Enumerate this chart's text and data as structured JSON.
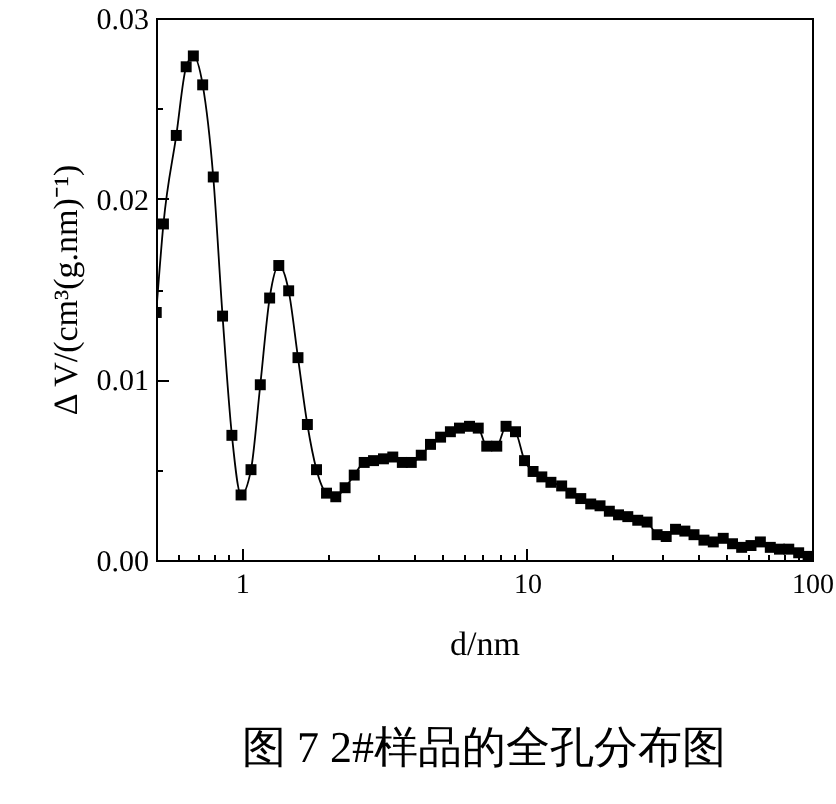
{
  "chart_data": {
    "type": "line",
    "xlabel": "d/nm",
    "ylabel": "Δ V/(cm³(g.nm)⁻¹)",
    "annotations": [
      "图 7  2#样品的全孔分布图"
    ],
    "log": "x",
    "grid": false,
    "marker": "square",
    "line_style": "solid",
    "xlim": [
      0.5,
      100
    ],
    "xticks": [
      {
        "value": 0.6,
        "label": null
      },
      {
        "value": 0.7,
        "label": null
      },
      {
        "value": 0.8,
        "label": null
      },
      {
        "value": 0.9,
        "label": null
      },
      1,
      {
        "value": 2,
        "label": null
      },
      {
        "value": 3,
        "label": null
      },
      {
        "value": 4,
        "label": null
      },
      {
        "value": 5,
        "label": null
      },
      {
        "value": 6,
        "label": null
      },
      {
        "value": 7,
        "label": null
      },
      {
        "value": 8,
        "label": null
      },
      {
        "value": 9,
        "label": null
      },
      10,
      {
        "value": 20,
        "label": null
      },
      {
        "value": 30,
        "label": null
      },
      {
        "value": 40,
        "label": null
      },
      {
        "value": 50,
        "label": null
      },
      {
        "value": 60,
        "label": null
      },
      {
        "value": 70,
        "label": null
      },
      {
        "value": 80,
        "label": null
      },
      {
        "value": 90,
        "label": null
      },
      100
    ],
    "ylim": [
      0,
      0.03
    ],
    "yticks": [
      {
        "value": 0,
        "label": "0.00"
      },
      {
        "value": 0.005,
        "label": null
      },
      0.01,
      {
        "value": 0.015,
        "label": null
      },
      0.02,
      {
        "value": 0.025,
        "label": null
      },
      0.03
    ],
    "x": [
      0.501,
      0.531,
      0.589,
      0.638,
      0.676,
      0.729,
      0.794,
      0.856,
      0.923,
      0.994,
      1.077,
      1.161,
      1.252,
      1.348,
      1.46,
      1.574,
      1.698,
      1.828,
      1.982,
      2.136,
      2.303,
      2.479,
      2.687,
      2.897,
      3.139,
      3.385,
      3.656,
      3.93,
      4.26,
      4.59,
      4.98,
      5.39,
      5.8,
      6.29,
      6.75,
      7.23,
      7.84,
      8.45,
      9.12,
      9.81,
      10.51,
      11.28,
      12.14,
      13.24,
      14.26,
      15.45,
      16.74,
      18.05,
      19.46,
      20.96,
      22.59,
      24.48,
      26.4,
      28.61,
      30.8,
      33.21,
      35.81,
      38.56,
      41.78,
      45.05,
      48.82,
      52.64,
      56.66,
      61.1,
      65.9,
      71.4,
      76.9,
      82.9,
      89.8,
      96.9
    ],
    "series": [
      {
        "color": "#000000",
        "values": [
          0.0137,
          0.0186,
          0.0235,
          0.0273,
          0.0279,
          0.0263,
          0.0212,
          0.0135,
          0.0069,
          0.0036,
          0.005,
          0.0097,
          0.0145,
          0.0163,
          0.0149,
          0.0112,
          0.0075,
          0.005,
          0.0037,
          0.0035,
          0.004,
          0.0047,
          0.0054,
          0.0055,
          0.0056,
          0.0057,
          0.0054,
          0.0054,
          0.0058,
          0.0064,
          0.0068,
          0.0071,
          0.0073,
          0.0074,
          0.0073,
          0.0063,
          0.0063,
          0.0074,
          0.0071,
          0.0055,
          0.0049,
          0.0046,
          0.0043,
          0.0041,
          0.0037,
          0.0034,
          0.0031,
          0.003,
          0.0027,
          0.0025,
          0.0024,
          0.0022,
          0.0021,
          0.0014,
          0.0013,
          0.0017,
          0.0016,
          0.0014,
          0.0011,
          0.001,
          0.0012,
          0.0009,
          0.0007,
          0.0008,
          0.001,
          0.0007,
          0.0006,
          0.0006,
          0.0004,
          0.0002
        ]
      }
    ]
  }
}
